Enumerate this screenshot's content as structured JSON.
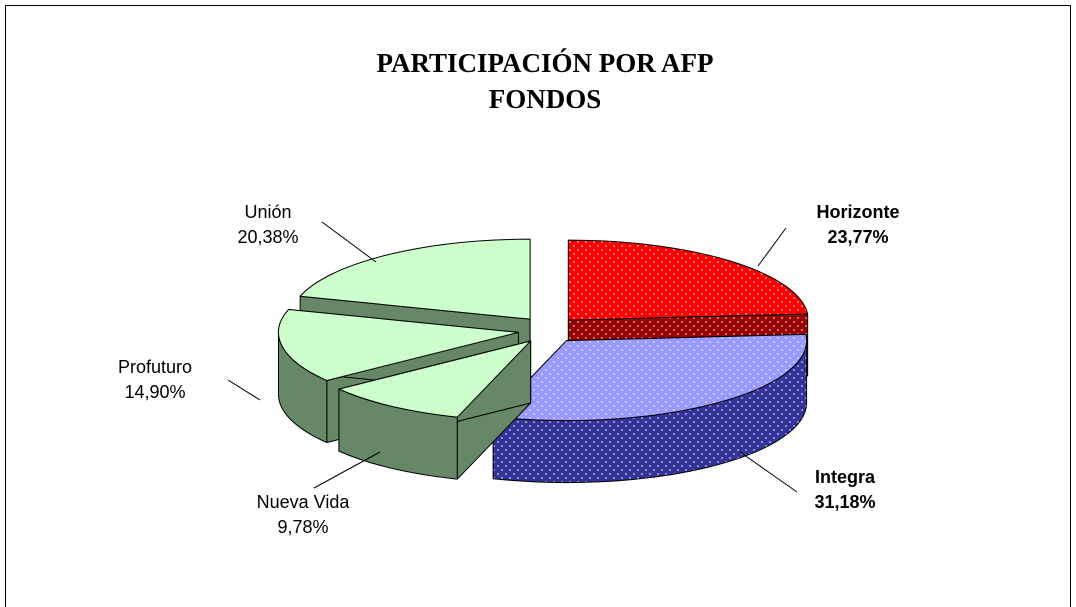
{
  "chart_data": {
    "type": "pie",
    "title": "PARTICIPACIÓN POR AFP",
    "subtitle": "FONDOS",
    "categories": [
      "Horizonte",
      "Integra",
      "Nueva Vida",
      "Profuturo",
      "Unión"
    ],
    "values": [
      23.77,
      31.18,
      9.78,
      14.9,
      20.38
    ],
    "value_labels": [
      "23,77%",
      "31,18%",
      "9,78%",
      "14,90%",
      "20,38%"
    ],
    "colors": [
      "#ff0000",
      "#9999ff",
      "#ccffcc",
      "#ccffcc",
      "#ccffcc"
    ],
    "side_colors": [
      "#990000",
      "#333399",
      "#668866",
      "#668866",
      "#668866"
    ],
    "dotted": [
      true,
      true,
      false,
      false,
      false
    ]
  }
}
